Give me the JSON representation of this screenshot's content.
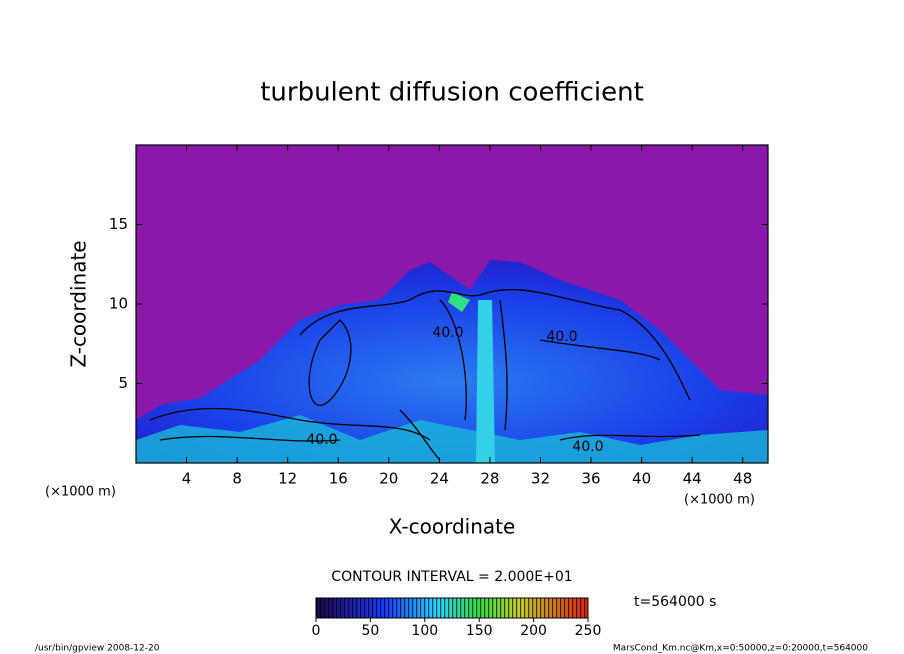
{
  "chart_data": {
    "type": "contour",
    "title": "turbulent diffusion coefficient",
    "x_label": "X-coordinate",
    "y_label": "Z-coordinate",
    "x_unit_label": "(×1000 m)",
    "y_unit_label": "(×1000 m)",
    "xlim": [
      0,
      50
    ],
    "ylim": [
      0,
      20
    ],
    "xticks": [
      4,
      8,
      12,
      16,
      20,
      24,
      28,
      32,
      36,
      40,
      44,
      48
    ],
    "yticks": [
      5,
      10,
      15
    ],
    "contour_interval": "CONTOUR INTERVAL = 2.000E+01",
    "contour_labels": {
      "values": [
        40,
        40,
        40,
        40
      ],
      "value_labels": [
        "40.0",
        "40.0",
        "40.0",
        "40.0"
      ]
    },
    "time_label": "t=564000 s",
    "colorbar": {
      "clim": [
        0,
        250
      ],
      "ticks": [
        0,
        50,
        100,
        150,
        200,
        250
      ]
    },
    "footer_left": "/usr/bin/gpview   2008-12-20",
    "footer_right": "MarsCond_Km.nc@Km,x=0:50000,z=0:20000,t=564000"
  }
}
